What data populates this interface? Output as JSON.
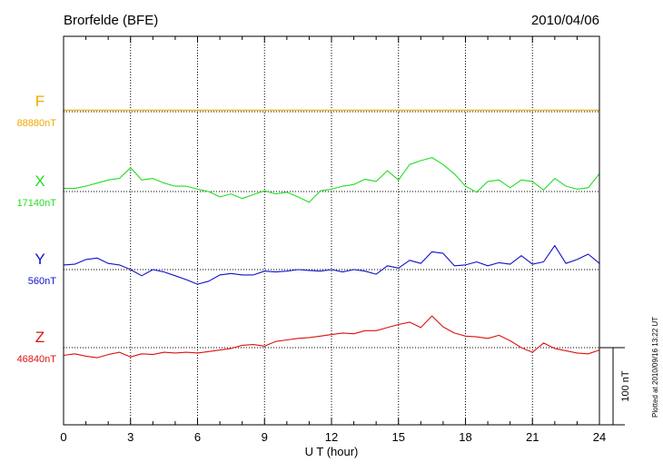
{
  "header": {
    "station": "Brorfelde (BFE)",
    "date": "2010/04/06"
  },
  "footer_note": "Plotted at 2010/09/16 13:22 UT",
  "scale_bar": {
    "label": "100 nT",
    "nT": 100
  },
  "chart_data": {
    "type": "line",
    "title": "Brorfelde (BFE)",
    "xlabel": "U T (hour)",
    "ylabel": "",
    "xlim": [
      0,
      24
    ],
    "x_ticks": [
      "0",
      "3",
      "6",
      "9",
      "12",
      "15",
      "18",
      "21",
      "24"
    ],
    "grid": true,
    "x": [
      0,
      0.5,
      1,
      1.5,
      2,
      2.5,
      3,
      3.5,
      4,
      4.5,
      5,
      5.5,
      6,
      6.5,
      7,
      7.5,
      8,
      8.5,
      9,
      9.5,
      10,
      10.5,
      11,
      11.5,
      12,
      12.5,
      13,
      13.5,
      14,
      14.5,
      15,
      15.5,
      16,
      16.5,
      17,
      17.5,
      18,
      18.5,
      19,
      19.5,
      20,
      20.5,
      21,
      21.5,
      22,
      22.5,
      23,
      23.5,
      24
    ],
    "series": [
      {
        "name": "F",
        "label": "F",
        "baseline_label": "88880nT",
        "baseline_nT": 88880,
        "color": "#f0a800",
        "values": [
          88882,
          88882,
          88882,
          88882,
          88882,
          88882,
          88882,
          88882,
          88882,
          88882,
          88882,
          88882,
          88882,
          88882,
          88882,
          88882,
          88882,
          88882,
          88882,
          88882,
          88882,
          88882,
          88882,
          88882,
          88882,
          88882,
          88882,
          88882,
          88882,
          88882,
          88882,
          88882,
          88882,
          88882,
          88882,
          88882,
          88882,
          88882,
          88882,
          88882,
          88882,
          88882,
          88882,
          88882,
          88882,
          88882,
          88882,
          88882,
          88882
        ]
      },
      {
        "name": "X",
        "label": "X",
        "baseline_label": "17140nT",
        "baseline_nT": 17140,
        "color": "#22dd22",
        "values": [
          17144,
          17144,
          17147,
          17151,
          17155,
          17157,
          17171,
          17155,
          17157,
          17151,
          17147,
          17147,
          17143,
          17140,
          17133,
          17137,
          17131,
          17136,
          17141,
          17137,
          17139,
          17133,
          17126,
          17141,
          17143,
          17147,
          17149,
          17156,
          17153,
          17167,
          17155,
          17175,
          17180,
          17184,
          17175,
          17163,
          17147,
          17139,
          17153,
          17155,
          17145,
          17155,
          17153,
          17142,
          17157,
          17147,
          17143,
          17145,
          17163
        ]
      },
      {
        "name": "Y",
        "label": "Y",
        "baseline_label": "560nT",
        "baseline_nT": 560,
        "color": "#1010cc",
        "values": [
          566,
          567,
          573,
          575,
          568,
          566,
          560,
          552,
          560,
          557,
          552,
          547,
          541,
          545,
          553,
          555,
          553,
          553,
          558,
          557,
          558,
          560,
          559,
          558,
          560,
          557,
          560,
          558,
          554,
          565,
          562,
          572,
          568,
          583,
          581,
          565,
          566,
          570,
          565,
          569,
          567,
          578,
          567,
          570,
          591,
          568,
          573,
          580,
          568
        ]
      },
      {
        "name": "Z",
        "label": "Z",
        "baseline_label": "46840nT",
        "baseline_nT": 46840,
        "color": "#dd1111",
        "values": [
          46830,
          46832,
          46829,
          46827,
          46831,
          46834,
          46828,
          46832,
          46831,
          46834,
          46833,
          46834,
          46833,
          46835,
          46837,
          46839,
          46843,
          46844,
          46842,
          46848,
          46850,
          46852,
          46853,
          46855,
          46857,
          46859,
          46858,
          46862,
          46862,
          46866,
          46870,
          46873,
          46866,
          46881,
          46867,
          46859,
          46855,
          46854,
          46852,
          46856,
          46849,
          46840,
          46834,
          46846,
          46839,
          46836,
          46833,
          46832,
          46837
        ]
      }
    ]
  }
}
